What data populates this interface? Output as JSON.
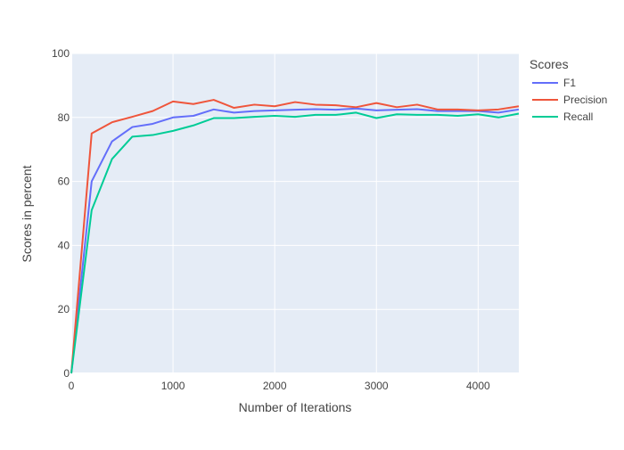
{
  "chart_data": {
    "type": "line",
    "title": "",
    "xlabel": "Number of Iterations",
    "ylabel": "Scores in percent",
    "xlim": [
      0,
      4400
    ],
    "ylim": [
      0,
      100
    ],
    "xticks": [
      0,
      1000,
      2000,
      3000,
      4000
    ],
    "yticks": [
      0,
      20,
      40,
      60,
      80,
      100
    ],
    "grid": true,
    "legend": {
      "title": "Scores",
      "placement": "top-right-outside"
    },
    "x": [
      0,
      200,
      400,
      600,
      800,
      1000,
      1200,
      1400,
      1600,
      1800,
      2000,
      2200,
      2400,
      2600,
      2800,
      3000,
      3200,
      3400,
      3600,
      3800,
      4000,
      4200,
      4400
    ],
    "series": [
      {
        "name": "F1",
        "color": "#636efa",
        "values": [
          0,
          60,
          72.5,
          77,
          78,
          80,
          80.5,
          82.5,
          81.5,
          82,
          82.2,
          82.4,
          82.6,
          82.4,
          82.8,
          82.2,
          82.4,
          82.6,
          82,
          82,
          82,
          81.5,
          82.5
        ]
      },
      {
        "name": "Precision",
        "color": "#ef553b",
        "values": [
          0,
          75,
          78.5,
          80.2,
          82,
          85,
          84.2,
          85.5,
          83,
          84,
          83.5,
          84.8,
          84,
          83.8,
          83.2,
          84.5,
          83.2,
          84,
          82.5,
          82.5,
          82.2,
          82.5,
          83.5
        ]
      },
      {
        "name": "Recall",
        "color": "#00cc96",
        "values": [
          0,
          51,
          67,
          74,
          74.5,
          75.8,
          77.5,
          79.8,
          79.8,
          80.2,
          80.5,
          80.2,
          80.8,
          80.8,
          81.5,
          79.8,
          81,
          80.8,
          80.8,
          80.5,
          81,
          80,
          81.2
        ]
      }
    ]
  }
}
